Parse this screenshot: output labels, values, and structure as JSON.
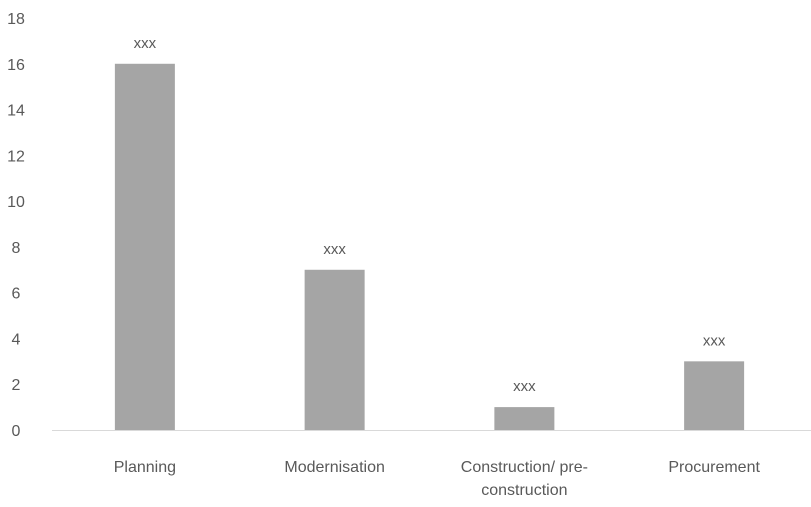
{
  "chart_data": {
    "type": "bar",
    "categories": [
      "Planning",
      "Modernisation",
      "Construction/ pre-construction",
      "Procurement"
    ],
    "category_lines": [
      [
        "Planning"
      ],
      [
        "Modernisation"
      ],
      [
        "Construction/ pre-",
        "construction"
      ],
      [
        "Procurement"
      ]
    ],
    "values": [
      16,
      7,
      1,
      3
    ],
    "data_labels": [
      "xxx",
      "xxx",
      "xxx",
      "xxx"
    ],
    "ylim": [
      0,
      18
    ],
    "yticks": [
      0,
      2,
      4,
      6,
      8,
      10,
      12,
      14,
      16,
      18
    ],
    "title": "",
    "xlabel": "",
    "ylabel": "",
    "grid": false,
    "legend": "none",
    "bar_color": "#a5a5a5",
    "axis_color": "#d9d9d9",
    "text_color": "#595959"
  }
}
